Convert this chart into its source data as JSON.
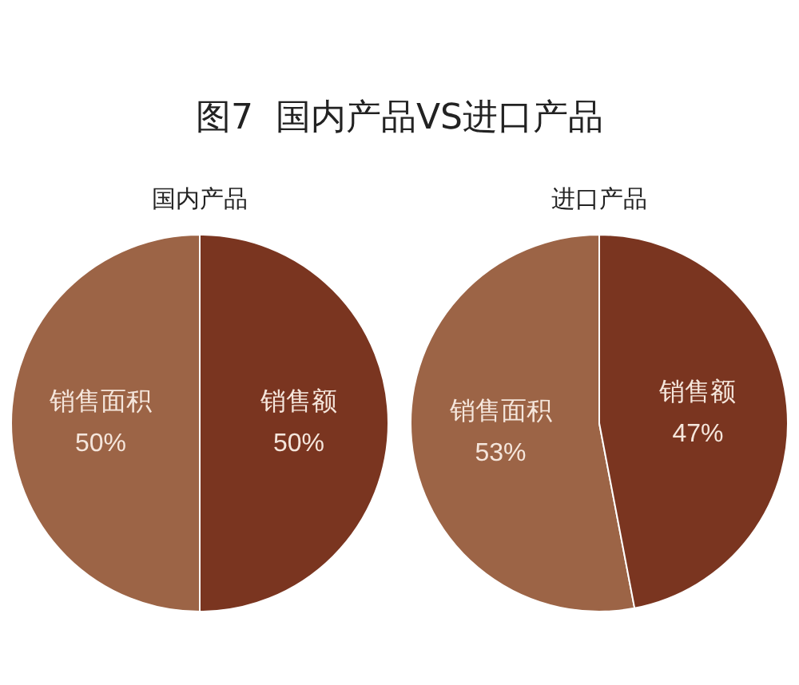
{
  "chart_data": [
    {
      "type": "other",
      "title": "图7  国内产品VS进口产品"
    },
    {
      "type": "pie",
      "title": "国内产品",
      "categories": [
        "销售面积",
        "销售额"
      ],
      "values": [
        50,
        50
      ],
      "colors": [
        "#9c6446",
        "#7a3520"
      ],
      "value_labels": [
        "50%",
        "50%"
      ],
      "legend": false
    },
    {
      "type": "pie",
      "title": "进口产品",
      "categories": [
        "销售面积",
        "销售额"
      ],
      "values": [
        53,
        47
      ],
      "colors": [
        "#9c6446",
        "#7a3520"
      ],
      "value_labels": [
        "53%",
        "47%"
      ],
      "legend": false
    }
  ]
}
